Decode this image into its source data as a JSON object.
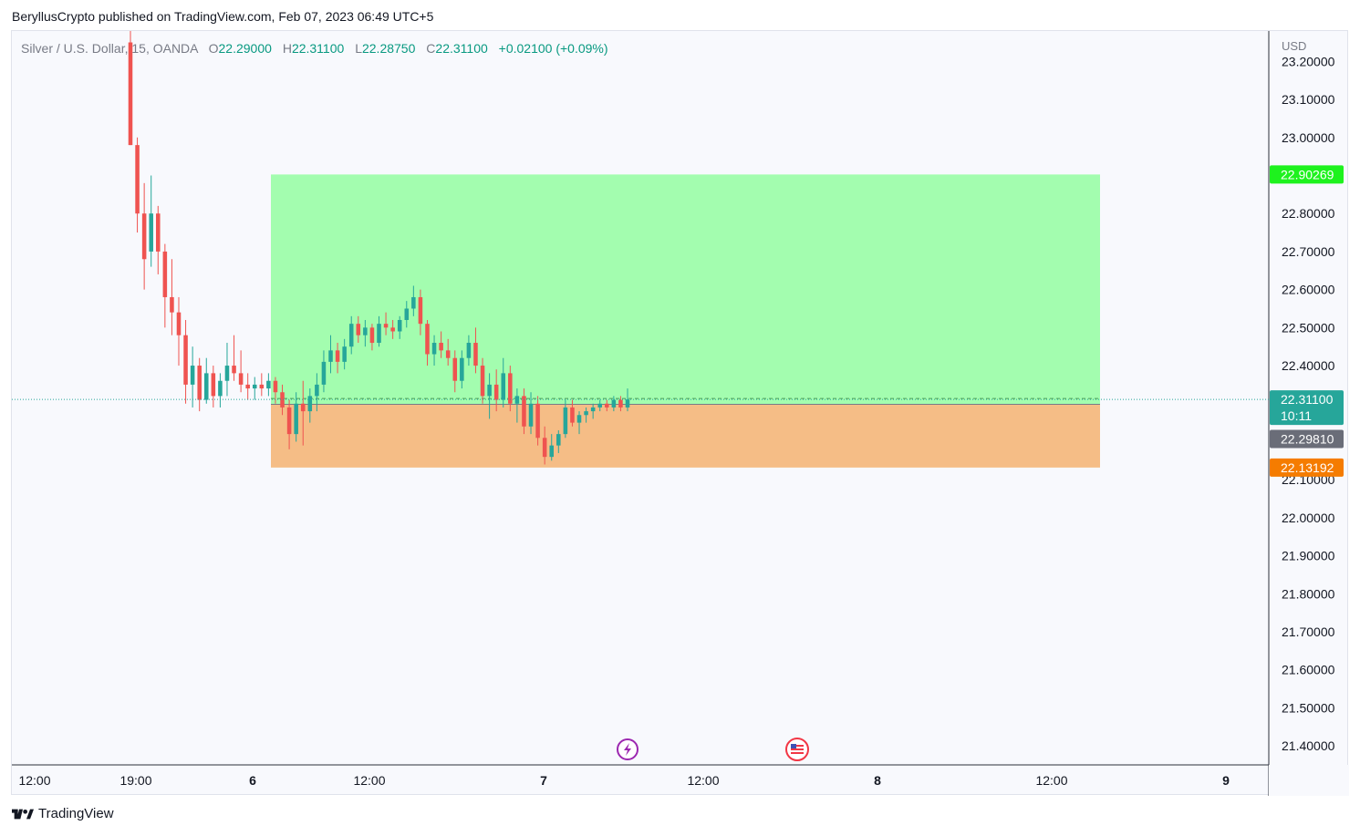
{
  "header": {
    "published_by": "BeryllusCrypto published on TradingView.com, Feb 07, 2023 06:49 UTC+5"
  },
  "legend": {
    "symbol": "Silver / U.S. Dollar, 15, OANDA",
    "open_label": "O",
    "open": "22.29000",
    "high_label": "H",
    "high": "22.31100",
    "low_label": "L",
    "low": "22.28750",
    "close_label": "C",
    "close": "22.31100",
    "change": "+0.02100 (+0.09%)"
  },
  "footer": {
    "brand": "TradingView"
  },
  "colors": {
    "up": "#26a69a",
    "down": "#ef5350",
    "profit_zone": "#a3fdaf",
    "loss_zone": "#f5bd86",
    "target_tag": "#1ef21e",
    "stop_tag": "#f57c00",
    "last_price_tag": "#26a69a",
    "entry_tag": "#6a6d78"
  },
  "chart_data": {
    "type": "candlestick",
    "currency_label": "USD",
    "y_ticks": [
      "23.20000",
      "23.10000",
      "23.00000",
      "22.80000",
      "22.70000",
      "22.60000",
      "22.50000",
      "22.40000",
      "22.10000",
      "22.00000",
      "21.90000",
      "21.80000",
      "21.70000",
      "21.60000",
      "21.50000",
      "21.40000"
    ],
    "x_ticks": [
      "12:00",
      "19:00",
      "6",
      "12:00",
      "7",
      "12:00",
      "8",
      "12:00",
      "9"
    ],
    "ylim": [
      21.35,
      23.28
    ],
    "position": {
      "type": "long",
      "entry": 22.2981,
      "target": 22.90269,
      "stop": 22.13192
    },
    "price_tags": {
      "target": "22.90269",
      "last": "22.31100",
      "countdown": "10:11",
      "entry": "22.29810",
      "stop": "22.13192"
    },
    "last_price": 22.311,
    "candles": [
      [
        23.25,
        23.28,
        22.98,
        22.98
      ],
      [
        22.98,
        23.0,
        22.75,
        22.8
      ],
      [
        22.8,
        22.88,
        22.6,
        22.68
      ],
      [
        22.7,
        22.9,
        22.66,
        22.8
      ],
      [
        22.8,
        22.82,
        22.64,
        22.7
      ],
      [
        22.7,
        22.72,
        22.5,
        22.58
      ],
      [
        22.58,
        22.68,
        22.48,
        22.54
      ],
      [
        22.54,
        22.58,
        22.4,
        22.48
      ],
      [
        22.48,
        22.52,
        22.3,
        22.35
      ],
      [
        22.35,
        22.45,
        22.29,
        22.4
      ],
      [
        22.4,
        22.42,
        22.28,
        22.31
      ],
      [
        22.31,
        22.42,
        22.3,
        22.38
      ],
      [
        22.38,
        22.4,
        22.29,
        22.32
      ],
      [
        22.32,
        22.38,
        22.29,
        22.36
      ],
      [
        22.36,
        22.46,
        22.32,
        22.4
      ],
      [
        22.4,
        22.48,
        22.36,
        22.38
      ],
      [
        22.38,
        22.44,
        22.33,
        22.35
      ],
      [
        22.35,
        22.38,
        22.31,
        22.34
      ],
      [
        22.34,
        22.37,
        22.31,
        22.35
      ],
      [
        22.35,
        22.38,
        22.32,
        22.34
      ],
      [
        22.34,
        22.38,
        22.32,
        22.36
      ],
      [
        22.36,
        22.37,
        22.3,
        22.33
      ],
      [
        22.33,
        22.35,
        22.27,
        22.29
      ],
      [
        22.29,
        22.31,
        22.18,
        22.22
      ],
      [
        22.22,
        22.33,
        22.2,
        22.3
      ],
      [
        22.3,
        22.36,
        22.19,
        22.28
      ],
      [
        22.28,
        22.34,
        22.25,
        22.32
      ],
      [
        22.32,
        22.38,
        22.28,
        22.35
      ],
      [
        22.35,
        22.44,
        22.33,
        22.41
      ],
      [
        22.41,
        22.48,
        22.38,
        22.44
      ],
      [
        22.44,
        22.46,
        22.38,
        22.41
      ],
      [
        22.41,
        22.47,
        22.39,
        22.45
      ],
      [
        22.45,
        22.53,
        22.43,
        22.51
      ],
      [
        22.51,
        22.53,
        22.46,
        22.48
      ],
      [
        22.48,
        22.52,
        22.45,
        22.5
      ],
      [
        22.5,
        22.51,
        22.44,
        22.46
      ],
      [
        22.46,
        22.53,
        22.45,
        22.51
      ],
      [
        22.51,
        22.54,
        22.48,
        22.5
      ],
      [
        22.5,
        22.52,
        22.47,
        22.49
      ],
      [
        22.49,
        22.53,
        22.47,
        22.52
      ],
      [
        22.52,
        22.57,
        22.5,
        22.55
      ],
      [
        22.55,
        22.61,
        22.53,
        22.58
      ],
      [
        22.58,
        22.6,
        22.48,
        22.51
      ],
      [
        22.51,
        22.52,
        22.4,
        22.43
      ],
      [
        22.43,
        22.48,
        22.4,
        22.46
      ],
      [
        22.46,
        22.49,
        22.42,
        22.44
      ],
      [
        22.44,
        22.47,
        22.4,
        22.42
      ],
      [
        22.42,
        22.44,
        22.33,
        22.36
      ],
      [
        22.36,
        22.44,
        22.34,
        22.42
      ],
      [
        22.42,
        22.48,
        22.4,
        22.46
      ],
      [
        22.46,
        22.5,
        22.38,
        22.4
      ],
      [
        22.4,
        22.42,
        22.3,
        22.32
      ],
      [
        22.32,
        22.38,
        22.26,
        22.35
      ],
      [
        22.35,
        22.39,
        22.28,
        22.31
      ],
      [
        22.31,
        22.42,
        22.29,
        22.38
      ],
      [
        22.38,
        22.4,
        22.28,
        22.3
      ],
      [
        22.3,
        22.34,
        22.25,
        22.32
      ],
      [
        22.32,
        22.34,
        22.22,
        22.24
      ],
      [
        22.24,
        22.33,
        22.22,
        22.3
      ],
      [
        22.3,
        22.32,
        22.19,
        22.21
      ],
      [
        22.21,
        22.24,
        22.14,
        22.16
      ],
      [
        22.16,
        22.22,
        22.15,
        22.19
      ],
      [
        22.19,
        22.23,
        22.17,
        22.22
      ],
      [
        22.22,
        22.31,
        22.21,
        22.29
      ],
      [
        22.29,
        22.31,
        22.24,
        22.25
      ],
      [
        22.25,
        22.28,
        22.22,
        22.27
      ],
      [
        22.27,
        22.29,
        22.25,
        22.28
      ],
      [
        22.28,
        22.3,
        22.26,
        22.29
      ],
      [
        22.29,
        22.31,
        22.28,
        22.3
      ],
      [
        22.3,
        22.31,
        22.28,
        22.29
      ],
      [
        22.29,
        22.32,
        22.28,
        22.31
      ],
      [
        22.31,
        22.32,
        22.28,
        22.29
      ],
      [
        22.29,
        22.34,
        22.28,
        22.311
      ]
    ]
  }
}
